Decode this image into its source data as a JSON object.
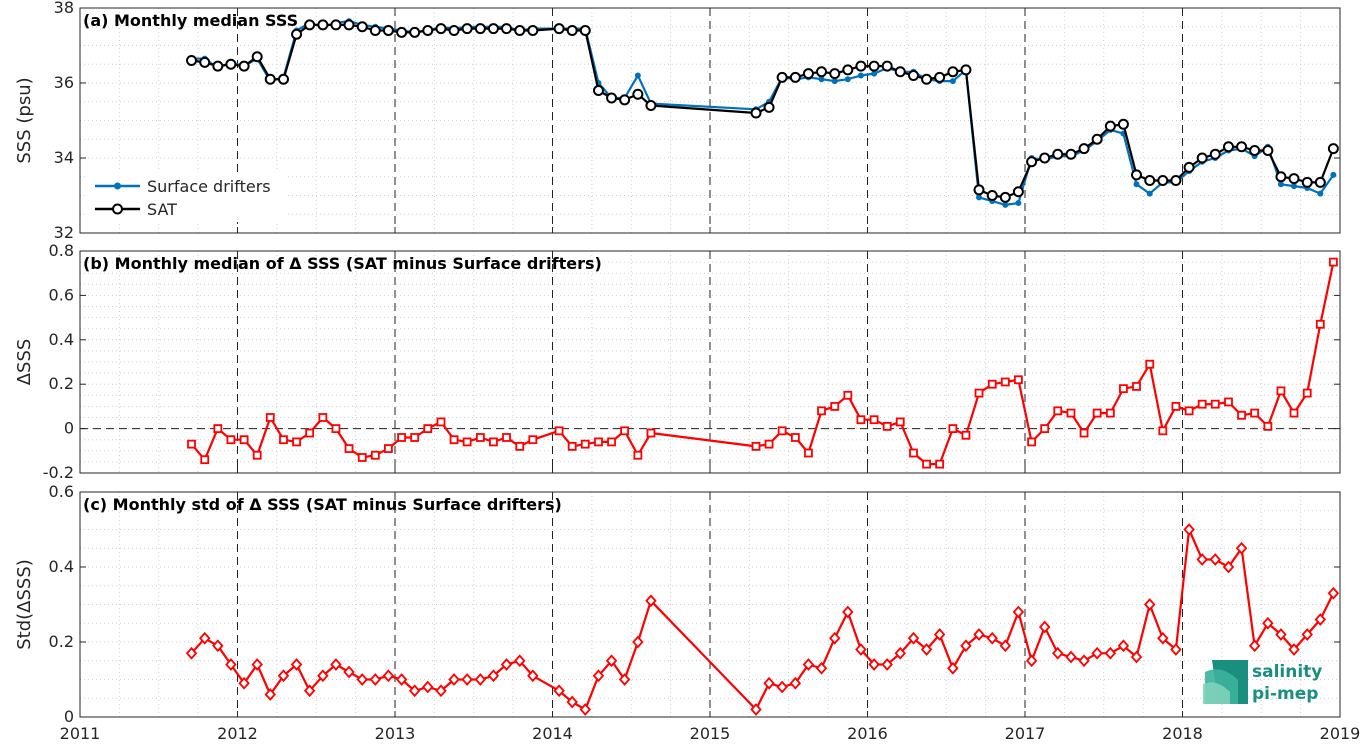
{
  "chart_data": [
    {
      "type": "line",
      "title": "(a) Monthly median SSS",
      "ylabel": "SSS (psu)",
      "xlim": [
        2011,
        2019
      ],
      "ylim": [
        32,
        38
      ],
      "yticks": [
        "32",
        "34",
        "36",
        "38"
      ],
      "xticks": [
        "2011",
        "2012",
        "2013",
        "2014",
        "2015",
        "2016",
        "2017",
        "2018",
        "2019"
      ],
      "grid": "on",
      "legend_position": "lower-left",
      "series": [
        {
          "name": "Surface drifters",
          "color": "#0072BD",
          "marker": "dot",
          "x": [
            2011.708,
            2011.792,
            2011.875,
            2011.958,
            2012.042,
            2012.125,
            2012.208,
            2012.292,
            2012.375,
            2012.458,
            2012.542,
            2012.625,
            2012.708,
            2012.792,
            2012.875,
            2012.958,
            2013.042,
            2013.125,
            2013.208,
            2013.292,
            2013.375,
            2013.458,
            2013.542,
            2013.625,
            2013.708,
            2013.792,
            2013.875,
            2014.042,
            2014.125,
            2014.208,
            2014.292,
            2014.375,
            2014.458,
            2014.542,
            2014.625,
            2015.292,
            2015.375,
            2015.458,
            2015.542,
            2015.625,
            2015.708,
            2015.792,
            2015.875,
            2015.958,
            2016.042,
            2016.125,
            2016.208,
            2016.292,
            2016.375,
            2016.458,
            2016.542,
            2016.625,
            2016.708,
            2016.792,
            2016.875,
            2016.958,
            2017.042,
            2017.125,
            2017.208,
            2017.292,
            2017.375,
            2017.458,
            2017.542,
            2017.625,
            2017.708,
            2017.792,
            2017.875,
            2017.958,
            2018.042,
            2018.125,
            2018.208,
            2018.292,
            2018.375,
            2018.458,
            2018.542,
            2018.625,
            2018.708,
            2018.792,
            2018.875,
            2018.958
          ],
          "y": [
            36.65,
            36.65,
            36.4,
            36.55,
            36.45,
            36.65,
            36.05,
            36.15,
            37.4,
            37.6,
            37.5,
            37.6,
            37.65,
            37.55,
            37.5,
            37.45,
            37.4,
            37.35,
            37.4,
            37.5,
            37.45,
            37.5,
            37.5,
            37.5,
            37.5,
            37.4,
            37.45,
            37.45,
            37.45,
            37.45,
            36.0,
            35.6,
            35.6,
            36.2,
            35.45,
            35.3,
            35.5,
            36.15,
            36.1,
            36.15,
            36.1,
            36.05,
            36.1,
            36.2,
            36.25,
            36.4,
            36.3,
            36.3,
            36.1,
            36.05,
            36.05,
            36.35,
            32.95,
            32.85,
            32.75,
            32.8,
            34.0,
            33.95,
            34.05,
            34.05,
            34.2,
            34.45,
            34.75,
            34.65,
            33.3,
            33.05,
            33.35,
            33.35,
            33.65,
            33.9,
            34.0,
            34.2,
            34.25,
            34.05,
            34.3,
            33.3,
            33.25,
            33.2,
            33.05,
            33.55
          ]
        },
        {
          "name": "SAT",
          "color": "#000000",
          "marker": "circle",
          "x": [
            2011.708,
            2011.792,
            2011.875,
            2011.958,
            2012.042,
            2012.125,
            2012.208,
            2012.292,
            2012.375,
            2012.458,
            2012.542,
            2012.625,
            2012.708,
            2012.792,
            2012.875,
            2012.958,
            2013.042,
            2013.125,
            2013.208,
            2013.292,
            2013.375,
            2013.458,
            2013.542,
            2013.625,
            2013.708,
            2013.792,
            2013.875,
            2014.042,
            2014.125,
            2014.208,
            2014.292,
            2014.375,
            2014.458,
            2014.542,
            2014.625,
            2015.292,
            2015.375,
            2015.458,
            2015.542,
            2015.625,
            2015.708,
            2015.792,
            2015.875,
            2015.958,
            2016.042,
            2016.125,
            2016.208,
            2016.292,
            2016.375,
            2016.458,
            2016.542,
            2016.625,
            2016.708,
            2016.792,
            2016.875,
            2016.958,
            2017.042,
            2017.125,
            2017.208,
            2017.292,
            2017.375,
            2017.458,
            2017.542,
            2017.625,
            2017.708,
            2017.792,
            2017.875,
            2017.958,
            2018.042,
            2018.125,
            2018.208,
            2018.292,
            2018.375,
            2018.458,
            2018.542,
            2018.625,
            2018.708,
            2018.792,
            2018.875,
            2018.958
          ],
          "y": [
            36.6,
            36.55,
            36.45,
            36.5,
            36.45,
            36.7,
            36.1,
            36.1,
            37.3,
            37.55,
            37.55,
            37.55,
            37.55,
            37.5,
            37.4,
            37.4,
            37.35,
            37.35,
            37.4,
            37.45,
            37.4,
            37.45,
            37.45,
            37.45,
            37.45,
            37.4,
            37.4,
            37.45,
            37.4,
            37.4,
            35.8,
            35.6,
            35.55,
            35.7,
            35.4,
            35.2,
            35.35,
            36.15,
            36.15,
            36.25,
            36.3,
            36.25,
            36.35,
            36.45,
            36.45,
            36.45,
            36.3,
            36.2,
            36.1,
            36.15,
            36.3,
            36.35,
            33.15,
            33.0,
            32.95,
            33.1,
            33.9,
            34.0,
            34.1,
            34.1,
            34.25,
            34.5,
            34.85,
            34.9,
            33.55,
            33.4,
            33.4,
            33.4,
            33.75,
            34.0,
            34.1,
            34.3,
            34.3,
            34.2,
            34.2,
            33.5,
            33.45,
            33.35,
            33.35,
            34.25
          ]
        }
      ]
    },
    {
      "type": "line",
      "title": "(b) Monthly median of Δ SSS (SAT minus Surface drifters)",
      "ylabel": "ΔSSS",
      "xlim": [
        2011,
        2019
      ],
      "ylim": [
        -0.2,
        0.8
      ],
      "yticks": [
        "-0.2",
        "0",
        "0.2",
        "0.4",
        "0.6",
        "0.8"
      ],
      "xticks": [
        "2011",
        "2012",
        "2013",
        "2014",
        "2015",
        "2016",
        "2017",
        "2018",
        "2019"
      ],
      "grid": "on",
      "reference_line": 0,
      "series": [
        {
          "name": "",
          "color": "#FF0000",
          "marker": "square",
          "x": [
            2011.708,
            2011.792,
            2011.875,
            2011.958,
            2012.042,
            2012.125,
            2012.208,
            2012.292,
            2012.375,
            2012.458,
            2012.542,
            2012.625,
            2012.708,
            2012.792,
            2012.875,
            2012.958,
            2013.042,
            2013.125,
            2013.208,
            2013.292,
            2013.375,
            2013.458,
            2013.542,
            2013.625,
            2013.708,
            2013.792,
            2013.875,
            2014.042,
            2014.125,
            2014.208,
            2014.292,
            2014.375,
            2014.458,
            2014.542,
            2014.625,
            2015.292,
            2015.375,
            2015.458,
            2015.542,
            2015.625,
            2015.708,
            2015.792,
            2015.875,
            2015.958,
            2016.042,
            2016.125,
            2016.208,
            2016.292,
            2016.375,
            2016.458,
            2016.542,
            2016.625,
            2016.708,
            2016.792,
            2016.875,
            2016.958,
            2017.042,
            2017.125,
            2017.208,
            2017.292,
            2017.375,
            2017.458,
            2017.542,
            2017.625,
            2017.708,
            2017.792,
            2017.875,
            2017.958,
            2018.042,
            2018.125,
            2018.208,
            2018.292,
            2018.375,
            2018.458,
            2018.542,
            2018.625,
            2018.708,
            2018.792,
            2018.875,
            2018.958
          ],
          "y": [
            -0.07,
            -0.14,
            0.0,
            -0.05,
            -0.05,
            -0.12,
            0.05,
            -0.05,
            -0.06,
            -0.02,
            0.05,
            0.0,
            -0.09,
            -0.13,
            -0.12,
            -0.09,
            -0.04,
            -0.04,
            0.0,
            0.03,
            -0.05,
            -0.06,
            -0.04,
            -0.06,
            -0.04,
            -0.08,
            -0.05,
            -0.01,
            -0.08,
            -0.07,
            -0.06,
            -0.06,
            -0.01,
            -0.12,
            -0.02,
            -0.08,
            -0.07,
            -0.01,
            -0.04,
            -0.11,
            0.08,
            0.1,
            0.15,
            0.04,
            0.04,
            0.01,
            0.03,
            -0.11,
            -0.16,
            -0.16,
            0.0,
            -0.03,
            0.16,
            0.2,
            0.21,
            0.22,
            -0.06,
            0.0,
            0.08,
            0.07,
            -0.02,
            0.07,
            0.07,
            0.18,
            0.19,
            0.29,
            -0.01,
            0.1,
            0.08,
            0.11,
            0.11,
            0.12,
            0.06,
            0.07,
            0.01,
            0.17,
            0.07,
            0.16,
            0.47,
            0.75
          ]
        }
      ]
    },
    {
      "type": "line",
      "title": "(c) Monthly std of Δ SSS (SAT minus Surface drifters)",
      "ylabel": "Std(ΔSSS)",
      "xlim": [
        2011,
        2019
      ],
      "ylim": [
        0,
        0.6
      ],
      "yticks": [
        "0",
        "0.2",
        "0.4",
        "0.6"
      ],
      "xticks": [
        "2011",
        "2012",
        "2013",
        "2014",
        "2015",
        "2016",
        "2017",
        "2018",
        "2019"
      ],
      "grid": "on",
      "series": [
        {
          "name": "",
          "color": "#FF0000",
          "marker": "diamond",
          "x": [
            2011.708,
            2011.792,
            2011.875,
            2011.958,
            2012.042,
            2012.125,
            2012.208,
            2012.292,
            2012.375,
            2012.458,
            2012.542,
            2012.625,
            2012.708,
            2012.792,
            2012.875,
            2012.958,
            2013.042,
            2013.125,
            2013.208,
            2013.292,
            2013.375,
            2013.458,
            2013.542,
            2013.625,
            2013.708,
            2013.792,
            2013.875,
            2014.042,
            2014.125,
            2014.208,
            2014.292,
            2014.375,
            2014.458,
            2014.542,
            2014.625,
            2015.292,
            2015.375,
            2015.458,
            2015.542,
            2015.625,
            2015.708,
            2015.792,
            2015.875,
            2015.958,
            2016.042,
            2016.125,
            2016.208,
            2016.292,
            2016.375,
            2016.458,
            2016.542,
            2016.625,
            2016.708,
            2016.792,
            2016.875,
            2016.958,
            2017.042,
            2017.125,
            2017.208,
            2017.292,
            2017.375,
            2017.458,
            2017.542,
            2017.625,
            2017.708,
            2017.792,
            2017.875,
            2017.958,
            2018.042,
            2018.125,
            2018.208,
            2018.292,
            2018.375,
            2018.458,
            2018.542,
            2018.625,
            2018.708,
            2018.792,
            2018.875,
            2018.958
          ],
          "y": [
            0.17,
            0.21,
            0.19,
            0.14,
            0.09,
            0.14,
            0.06,
            0.11,
            0.14,
            0.07,
            0.11,
            0.14,
            0.12,
            0.1,
            0.1,
            0.11,
            0.1,
            0.07,
            0.08,
            0.07,
            0.1,
            0.1,
            0.1,
            0.11,
            0.14,
            0.15,
            0.11,
            0.07,
            0.04,
            0.02,
            0.11,
            0.15,
            0.1,
            0.2,
            0.31,
            0.02,
            0.09,
            0.08,
            0.09,
            0.14,
            0.13,
            0.21,
            0.28,
            0.18,
            0.14,
            0.14,
            0.17,
            0.21,
            0.18,
            0.22,
            0.13,
            0.19,
            0.22,
            0.21,
            0.19,
            0.28,
            0.15,
            0.24,
            0.17,
            0.16,
            0.15,
            0.17,
            0.17,
            0.19,
            0.16,
            0.3,
            0.21,
            0.18,
            0.5,
            0.42,
            0.42,
            0.4,
            0.45,
            0.19,
            0.25,
            0.22,
            0.18,
            0.22,
            0.26,
            0.33
          ]
        }
      ]
    }
  ],
  "logo": {
    "line1": "salinity",
    "line2": "pi-mep",
    "colors": [
      "#1a8f80",
      "#3bb39b",
      "#7fd3b8"
    ]
  }
}
